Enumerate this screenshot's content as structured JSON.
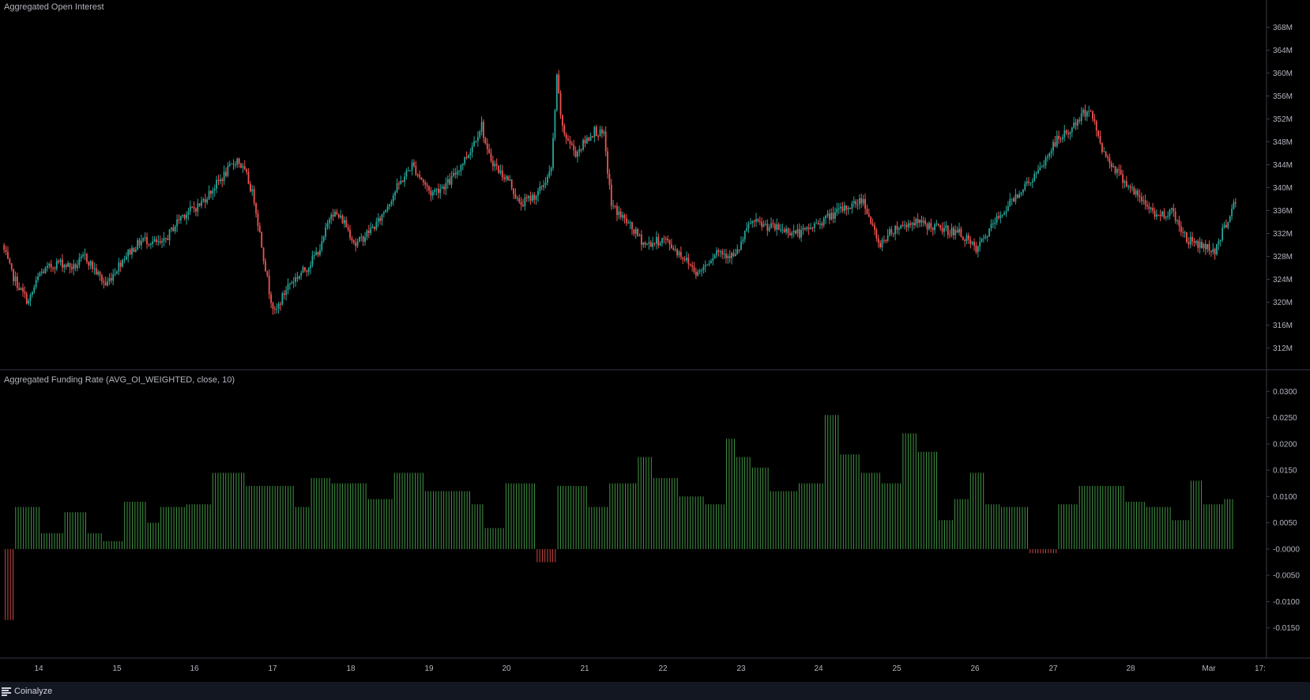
{
  "brand": {
    "name": "Coinalyze",
    "icon": "menu-lines-icon"
  },
  "colors": {
    "up": "#26a69a",
    "down": "#ef5350",
    "fr_pos": "#4caf50",
    "fr_neg": "#ef5350",
    "grid": "#1e222d",
    "text": "#b2b5be"
  },
  "chart_data": [
    {
      "type": "candlestick",
      "title": "Aggregated Open Interest",
      "ylim": [
        310,
        370
      ],
      "y_ticks": [
        {
          "value": 368,
          "label": "368M"
        },
        {
          "value": 364,
          "label": "364M"
        },
        {
          "value": 360,
          "label": "360M"
        },
        {
          "value": 356,
          "label": "356M"
        },
        {
          "value": 352,
          "label": "352M"
        },
        {
          "value": 348,
          "label": "348M"
        },
        {
          "value": 344,
          "label": "344M"
        },
        {
          "value": 340,
          "label": "340M"
        },
        {
          "value": 336,
          "label": "336M"
        },
        {
          "value": 332,
          "label": "332M"
        },
        {
          "value": 328,
          "label": "328M"
        },
        {
          "value": 324,
          "label": "324M"
        },
        {
          "value": 320,
          "label": "320M"
        },
        {
          "value": 316,
          "label": "316M"
        },
        {
          "value": 312,
          "label": "312M"
        }
      ],
      "x_ticks": [
        "14",
        "15",
        "16",
        "17",
        "18",
        "19",
        "20",
        "21",
        "22",
        "23",
        "24",
        "25",
        "26",
        "27",
        "28",
        "Mar",
        "17:"
      ],
      "anchors": [
        [
          0,
          330
        ],
        [
          5,
          325
        ],
        [
          10,
          322
        ],
        [
          14,
          320
        ],
        [
          20,
          325
        ],
        [
          30,
          327
        ],
        [
          38,
          326
        ],
        [
          44,
          328
        ],
        [
          55,
          323
        ],
        [
          65,
          328
        ],
        [
          75,
          331
        ],
        [
          85,
          330
        ],
        [
          95,
          335
        ],
        [
          105,
          337
        ],
        [
          115,
          341
        ],
        [
          125,
          345
        ],
        [
          130,
          342
        ],
        [
          134,
          338
        ],
        [
          138,
          330
        ],
        [
          142,
          322
        ],
        [
          145,
          318
        ],
        [
          152,
          323
        ],
        [
          162,
          326
        ],
        [
          170,
          330
        ],
        [
          175,
          336
        ],
        [
          182,
          334
        ],
        [
          188,
          330
        ],
        [
          200,
          334
        ],
        [
          210,
          340
        ],
        [
          218,
          344
        ],
        [
          228,
          339
        ],
        [
          238,
          341
        ],
        [
          248,
          346
        ],
        [
          255,
          351
        ],
        [
          258,
          346
        ],
        [
          264,
          343
        ],
        [
          270,
          341
        ],
        [
          275,
          337
        ],
        [
          285,
          339
        ],
        [
          292,
          343
        ],
        [
          295,
          359
        ],
        [
          298,
          350
        ],
        [
          305,
          346
        ],
        [
          315,
          350
        ],
        [
          320,
          349
        ],
        [
          324,
          337
        ],
        [
          332,
          334
        ],
        [
          342,
          330
        ],
        [
          352,
          331
        ],
        [
          362,
          328
        ],
        [
          370,
          325
        ],
        [
          380,
          329
        ],
        [
          390,
          328
        ],
        [
          398,
          334
        ],
        [
          410,
          333
        ],
        [
          425,
          332
        ],
        [
          440,
          335
        ],
        [
          458,
          338
        ],
        [
          466,
          330
        ],
        [
          475,
          333
        ],
        [
          485,
          334
        ],
        [
          497,
          333
        ],
        [
          510,
          332
        ],
        [
          518,
          329
        ],
        [
          528,
          334
        ],
        [
          540,
          339
        ],
        [
          552,
          343
        ],
        [
          560,
          348
        ],
        [
          568,
          350
        ],
        [
          578,
          354
        ],
        [
          586,
          346
        ],
        [
          595,
          342
        ],
        [
          605,
          338
        ],
        [
          615,
          335
        ],
        [
          622,
          336
        ],
        [
          630,
          331
        ],
        [
          645,
          329
        ],
        [
          655,
          337
        ]
      ]
    },
    {
      "type": "bar",
      "title": "Aggregated Funding Rate (AVG_OI_WEIGHTED, close, 10)",
      "ylim": [
        -0.0185,
        0.032
      ],
      "y_ticks": [
        {
          "value": 0.03,
          "label": "0.0300"
        },
        {
          "value": 0.025,
          "label": "0.0250"
        },
        {
          "value": 0.02,
          "label": "0.0200"
        },
        {
          "value": 0.015,
          "label": "0.0150"
        },
        {
          "value": 0.01,
          "label": "0.0100"
        },
        {
          "value": 0.005,
          "label": "0.0050"
        },
        {
          "value": 0,
          "label": "-0.0000"
        },
        {
          "value": -0.005,
          "label": "-0.0050"
        },
        {
          "value": -0.01,
          "label": "-0.0100"
        },
        {
          "value": -0.015,
          "label": "-0.0150"
        }
      ],
      "segments": [
        [
          0,
          4,
          -0.0135
        ],
        [
          4,
          14,
          0.008
        ],
        [
          14,
          23,
          0.003
        ],
        [
          23,
          32,
          0.007
        ],
        [
          32,
          38,
          0.003
        ],
        [
          38,
          46,
          0.0015
        ],
        [
          46,
          55,
          0.009
        ],
        [
          55,
          60,
          0.005
        ],
        [
          60,
          70,
          0.008
        ],
        [
          70,
          80,
          0.0085
        ],
        [
          80,
          93,
          0.0145
        ],
        [
          93,
          112,
          0.012
        ],
        [
          112,
          118,
          0.008
        ],
        [
          118,
          126,
          0.0135
        ],
        [
          126,
          140,
          0.0125
        ],
        [
          140,
          150,
          0.0095
        ],
        [
          150,
          162,
          0.0145
        ],
        [
          162,
          180,
          0.011
        ],
        [
          180,
          185,
          0.0085
        ],
        [
          185,
          193,
          0.004
        ],
        [
          193,
          205,
          0.0125
        ],
        [
          205,
          213,
          -0.0025
        ],
        [
          213,
          225,
          0.012
        ],
        [
          225,
          233,
          0.008
        ],
        [
          233,
          244,
          0.0125
        ],
        [
          244,
          250,
          0.0175
        ],
        [
          250,
          260,
          0.0135
        ],
        [
          260,
          270,
          0.01
        ],
        [
          270,
          278,
          0.0085
        ],
        [
          278,
          282,
          0.021
        ],
        [
          282,
          288,
          0.0175
        ],
        [
          288,
          295,
          0.0155
        ],
        [
          295,
          306,
          0.011
        ],
        [
          306,
          316,
          0.0125
        ],
        [
          316,
          322,
          0.0255
        ],
        [
          322,
          330,
          0.018
        ],
        [
          330,
          338,
          0.0145
        ],
        [
          338,
          346,
          0.0125
        ],
        [
          346,
          352,
          0.022
        ],
        [
          352,
          360,
          0.0185
        ],
        [
          360,
          366,
          0.0055
        ],
        [
          366,
          372,
          0.0095
        ],
        [
          372,
          378,
          0.0145
        ],
        [
          378,
          384,
          0.0085
        ],
        [
          384,
          395,
          0.008
        ],
        [
          395,
          406,
          -0.0008
        ],
        [
          406,
          414,
          0.0085
        ],
        [
          414,
          422,
          0.012
        ],
        [
          422,
          432,
          0.012
        ],
        [
          432,
          440,
          0.009
        ],
        [
          440,
          450,
          0.008
        ],
        [
          450,
          457,
          0.0055
        ],
        [
          457,
          462,
          0.013
        ],
        [
          462,
          470,
          0.0085
        ],
        [
          470,
          478,
          0.0095
        ],
        [
          478,
          485,
          0.0085
        ]
      ]
    }
  ]
}
